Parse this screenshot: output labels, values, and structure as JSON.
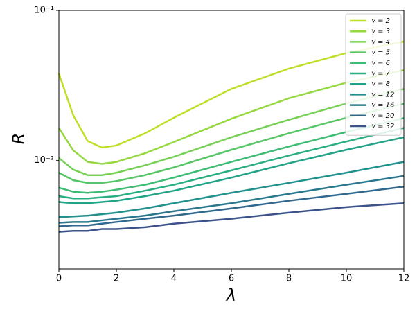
{
  "chart_data": {
    "type": "line",
    "x_label": "λ",
    "y_label": "R",
    "x": [
      0,
      0.5,
      1,
      1.5,
      2,
      3,
      4,
      6,
      8,
      10,
      12
    ],
    "xlim": [
      0,
      12
    ],
    "xticks": [
      0,
      2,
      4,
      6,
      8,
      10,
      12
    ],
    "ylim": [
      0.0019,
      0.1
    ],
    "log_y": true,
    "yticks": [
      {
        "value": 0.01,
        "label": "10⁻²"
      },
      {
        "value": 0.1,
        "label": "10⁻¹"
      }
    ],
    "legend": "upper right",
    "series": [
      {
        "name": "γ = 2",
        "color": "#bddf26",
        "values": [
          0.038,
          0.02,
          0.0135,
          0.0122,
          0.0126,
          0.0152,
          0.0193,
          0.03,
          0.041,
          0.052,
          0.062
        ]
      },
      {
        "name": "γ = 3",
        "color": "#95d840",
        "values": [
          0.0165,
          0.0117,
          0.0098,
          0.0095,
          0.0098,
          0.0112,
          0.0133,
          0.019,
          0.026,
          0.033,
          0.04
        ]
      },
      {
        "name": "γ = 4",
        "color": "#75d054",
        "values": [
          0.0104,
          0.0087,
          0.008,
          0.008,
          0.0083,
          0.0093,
          0.0106,
          0.0143,
          0.0187,
          0.024,
          0.03
        ]
      },
      {
        "name": "γ = 5",
        "color": "#56c667",
        "values": [
          0.0083,
          0.0074,
          0.0071,
          0.0071,
          0.0073,
          0.008,
          0.009,
          0.0118,
          0.0152,
          0.0193,
          0.0239
        ]
      },
      {
        "name": "γ = 6",
        "color": "#3dbc74",
        "values": [
          0.0066,
          0.0062,
          0.0061,
          0.0062,
          0.0064,
          0.0069,
          0.0077,
          0.0098,
          0.0124,
          0.0155,
          0.0192
        ]
      },
      {
        "name": "γ = 7",
        "color": "#29af7f",
        "values": [
          0.0058,
          0.0056,
          0.0056,
          0.0057,
          0.0058,
          0.0063,
          0.0069,
          0.0086,
          0.0108,
          0.0134,
          0.0165
        ]
      },
      {
        "name": "γ = 8",
        "color": "#20a386",
        "values": [
          0.0053,
          0.0052,
          0.0052,
          0.0053,
          0.0054,
          0.0058,
          0.0063,
          0.0077,
          0.0096,
          0.0118,
          0.0143
        ]
      },
      {
        "name": "γ = 12",
        "color": "#21918c",
        "values": [
          0.0042,
          0.00425,
          0.0043,
          0.0044,
          0.0045,
          0.0048,
          0.0052,
          0.0061,
          0.0071,
          0.0083,
          0.0098
        ]
      },
      {
        "name": "γ = 16",
        "color": "#2a788e",
        "values": [
          0.00385,
          0.0039,
          0.0039,
          0.004,
          0.0041,
          0.0043,
          0.0046,
          0.0052,
          0.006,
          0.0069,
          0.0079
        ]
      },
      {
        "name": "γ = 20",
        "color": "#31688e",
        "values": [
          0.00365,
          0.0037,
          0.0037,
          0.0038,
          0.0039,
          0.0041,
          0.0043,
          0.0048,
          0.0054,
          0.006,
          0.0067
        ]
      },
      {
        "name": "γ = 32",
        "color": "#3b528b",
        "values": [
          0.00335,
          0.0034,
          0.0034,
          0.0035,
          0.0035,
          0.0036,
          0.0038,
          0.0041,
          0.0045,
          0.0049,
          0.0052
        ]
      }
    ]
  }
}
